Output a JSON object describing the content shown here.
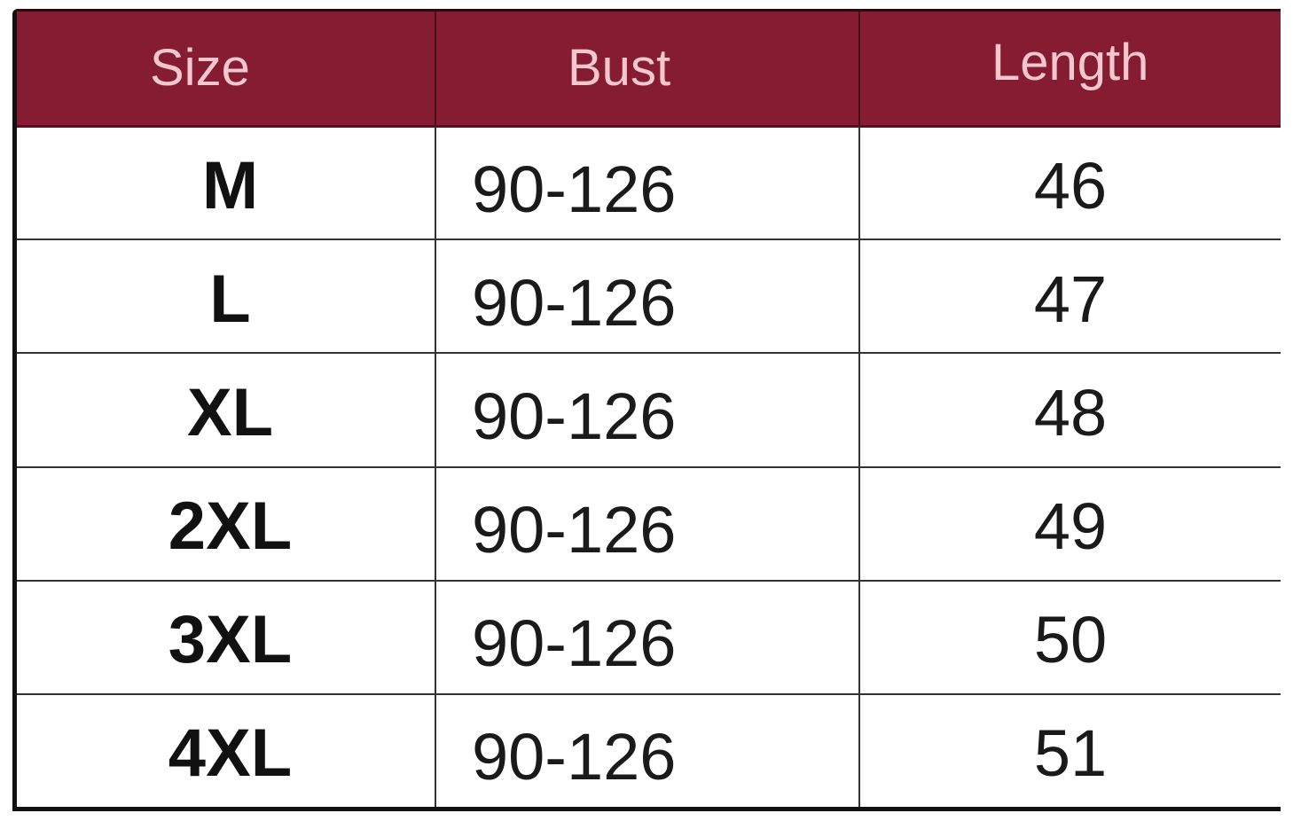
{
  "colors": {
    "header_bg": "#861c32",
    "header_text": "#f2c7cd",
    "grid": "#333333"
  },
  "table": {
    "headers": [
      "Size",
      "Bust",
      "Length"
    ],
    "rows": [
      [
        "M",
        "90-126",
        "46"
      ],
      [
        "L",
        "90-126",
        "47"
      ],
      [
        "XL",
        "90-126",
        "48"
      ],
      [
        "2XL",
        "90-126",
        "49"
      ],
      [
        "3XL",
        "90-126",
        "50"
      ],
      [
        "4XL",
        "90-126",
        "51"
      ]
    ]
  }
}
